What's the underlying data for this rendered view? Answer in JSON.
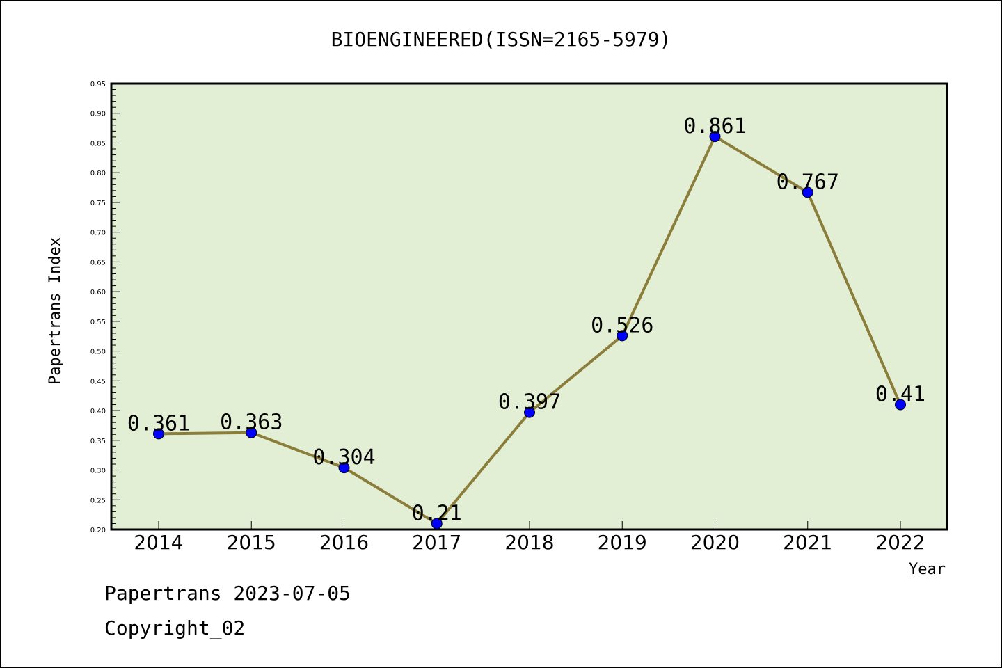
{
  "chart_data": {
    "type": "line",
    "title": "BIOENGINEERED(ISSN=2165-5979)",
    "xlabel": "Year",
    "ylabel": "Papertrans Index",
    "categories": [
      "2014",
      "2015",
      "2016",
      "2017",
      "2018",
      "2019",
      "2020",
      "2021",
      "2022"
    ],
    "series": [
      {
        "values": [
          0.361,
          0.363,
          0.304,
          0.21,
          0.397,
          0.526,
          0.861,
          0.767,
          0.41
        ],
        "data_labels": [
          "0.361",
          "0.363",
          "0.304",
          "0.21",
          "0.397",
          "0.526",
          "0.861",
          "0.767",
          "0.41"
        ]
      }
    ],
    "ylim": [
      0.2,
      0.95
    ],
    "yticks": [
      "0.20",
      "0.25",
      "0.30",
      "0.35",
      "0.40",
      "0.45",
      "0.50",
      "0.55",
      "0.60",
      "0.65",
      "0.70",
      "0.75",
      "0.80",
      "0.85",
      "0.90",
      "0.95"
    ],
    "grid": false,
    "legend": "none",
    "colors": {
      "plot_background": "#e2efd5",
      "line": "#8b7d3a",
      "marker": "#0000ff"
    }
  },
  "footer": {
    "date_line": "Papertrans 2023-07-05",
    "copyright": "Copyright_02"
  }
}
